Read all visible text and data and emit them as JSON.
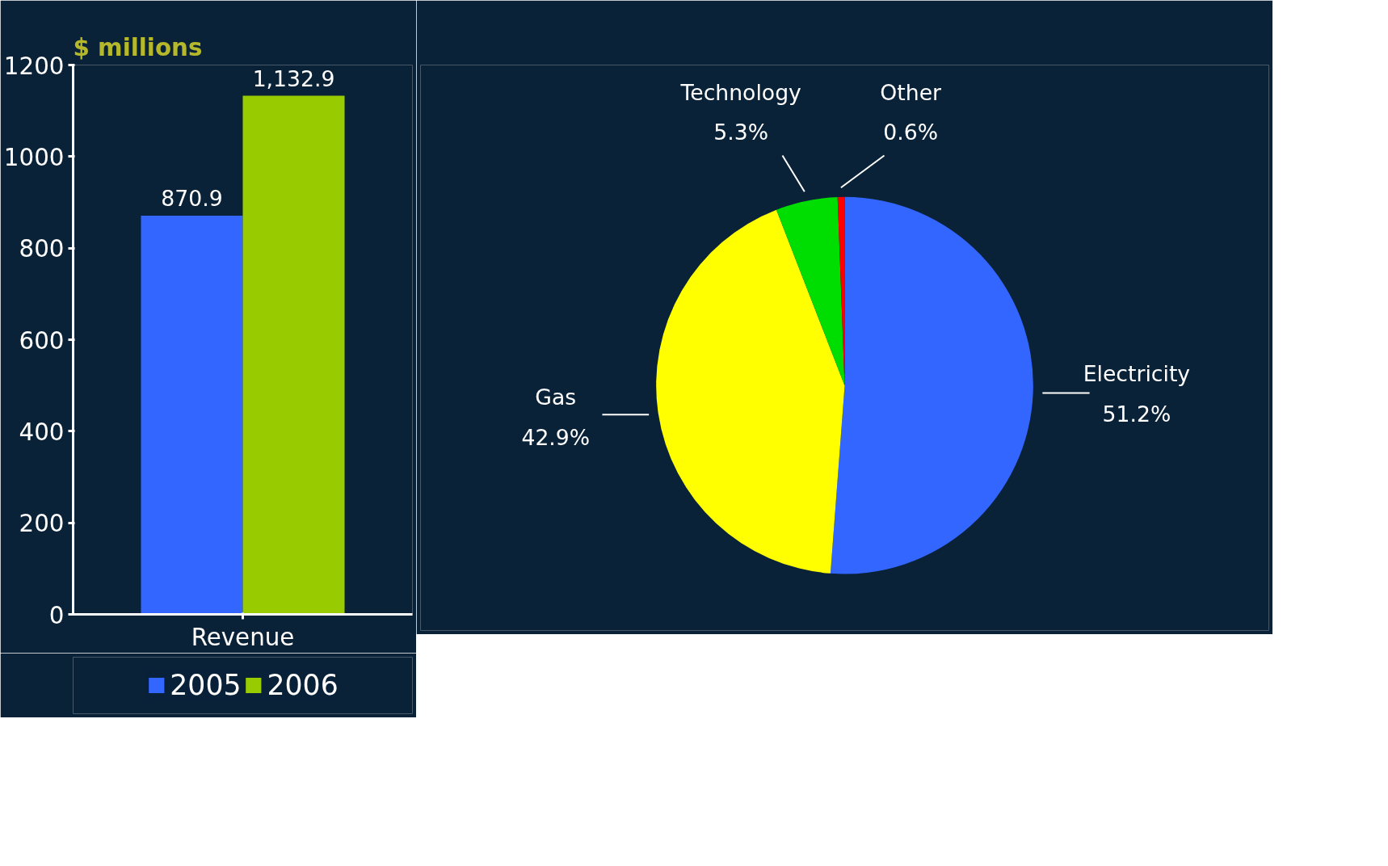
{
  "chart_data": [
    {
      "type": "bar",
      "ylabel": "$ millions",
      "categories": [
        "Revenue"
      ],
      "ylim": [
        0,
        1200
      ],
      "yticks": [
        0,
        200,
        400,
        600,
        800,
        1000,
        1200
      ],
      "grid": false,
      "legend": "bottom",
      "series": [
        {
          "name": "2005",
          "color": "#3366ff",
          "values": [
            870.9
          ],
          "value_labels": [
            "870.9"
          ]
        },
        {
          "name": "2006",
          "color": "#99cc00",
          "values": [
            1132.9
          ],
          "value_labels": [
            "1,132.9"
          ]
        }
      ]
    },
    {
      "type": "pie",
      "categories": [
        "Electricity",
        "Gas",
        "Technology",
        "Other"
      ],
      "values": [
        51.2,
        42.9,
        5.3,
        0.6
      ],
      "colors": [
        "#3366ff",
        "#ffff00",
        "#00dd00",
        "#ff0000"
      ],
      "value_labels": [
        "51.2%",
        "42.9%",
        "5.3%",
        "0.6%"
      ]
    }
  ]
}
